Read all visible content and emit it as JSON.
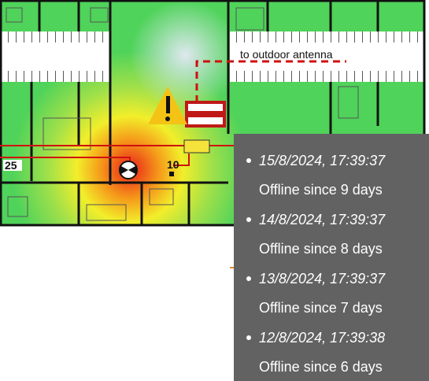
{
  "floor_plan": {
    "antenna_label": "to outdoor antenna",
    "markers": [
      "25",
      "10"
    ]
  },
  "tooltip": {
    "entries": [
      {
        "timestamp": "15/8/2024, 17:39:37",
        "status": "Offline since 9 days"
      },
      {
        "timestamp": "14/8/2024, 17:39:37",
        "status": "Offline since 8 days"
      },
      {
        "timestamp": "13/8/2024, 17:39:37",
        "status": "Offline since 7 days"
      },
      {
        "timestamp": "12/8/2024, 17:39:38",
        "status": "Offline since 6 days"
      }
    ]
  }
}
